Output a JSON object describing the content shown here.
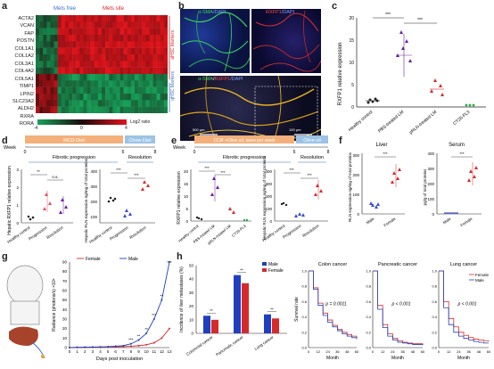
{
  "letters": {
    "a": "a",
    "b": "b",
    "c": "c",
    "d": "d",
    "e": "e",
    "f": "f",
    "g": "g",
    "h": "h"
  },
  "panel_a": {
    "groups": [
      "Mets free",
      "Mets site"
    ],
    "genes": [
      "ACTA2",
      "VCAN",
      "FAP",
      "POSTN",
      "COL1A1",
      "COL1A2",
      "COL3A1",
      "COL4A2",
      "COL5A1",
      "TIMP1",
      "LPIN2",
      "SLC23A2",
      "ALDH2",
      "RXRA",
      "RORA"
    ],
    "labels": [
      "aHSC Markers",
      "qHSC Markers"
    ],
    "scale_ticks": [
      "-4",
      "0",
      "4"
    ],
    "scale_title": "Log2 ratio",
    "colors": {
      "red": "#e4141b",
      "green": "#16a35a",
      "black": "#1a0a0a"
    }
  },
  "panel_b": {
    "top_left": {
      "part1": "α-SMA",
      "part2": "/DAPI"
    },
    "top_right": {
      "part1": "RXFP1",
      "part2": "/DAPI"
    },
    "bottom": {
      "part1": "α-SMA",
      "part2": "/",
      "part3": "RXFP1",
      "part4": "/DAPI"
    },
    "scalebars": [
      "500 μm",
      "100 μm"
    ]
  },
  "panel_c": {
    "ylabel": "RXFP1 relative expression",
    "yticks": [
      "0",
      "5",
      "10",
      "15",
      "20"
    ],
    "categories": [
      "Healthy control",
      "PBS-treated LM",
      "pRLN-treated LM",
      "CT26-FL3"
    ],
    "sig": [
      "***",
      "***"
    ]
  },
  "panel_d": {
    "diet_bar": "MCD Diet",
    "chow_bar": "Chow Diet",
    "week": "Week",
    "week_ticks": [
      "0",
      "6",
      "8"
    ],
    "phases": [
      "Fibrotic progression",
      "Resolution"
    ],
    "plot1": {
      "ylabel": "Hepatic RXFP1 relative expression",
      "yticks": [
        "0",
        "1",
        "2",
        "3"
      ],
      "categories": [
        "Healthy control",
        "Progression",
        "Resolution"
      ],
      "sig": [
        "**",
        "n.s.",
        "**"
      ]
    },
    "plot2": {
      "ylabel": "Hepatic RLN expression ng/mg of total proteins",
      "yticks": [
        "100",
        "200",
        "300",
        "400"
      ],
      "categories": [
        "Healthy control",
        "Progression",
        "Resolution"
      ],
      "sig": [
        "***",
        "***",
        "***"
      ]
    }
  },
  "panel_e": {
    "diet_bar": "CCl4 +Olive oil, twice per week",
    "olive_bar": "Olive oil",
    "week": "Week",
    "week_ticks": [
      "0",
      "6",
      "8"
    ],
    "phases": [
      "Fibrotic progression",
      "Resolution"
    ],
    "plot1": {
      "ylabel": "RXFP1 relative expression",
      "yticks": [
        "0",
        "5",
        "10",
        "15",
        "20"
      ],
      "categories": [
        "Healthy control",
        "PBS-treated LM",
        "pRLN-treated LM",
        "CT26-FL3"
      ],
      "sig": [
        "***",
        "***"
      ]
    },
    "plot2": {
      "ylabel": "Hepatic RLN expression ng/mg of total proteins",
      "yticks": [
        "0",
        "100",
        "200",
        "300",
        "400"
      ],
      "categories": [
        "Healthy control",
        "Progression",
        "Resolution"
      ],
      "sig": [
        "***",
        "***",
        "***"
      ]
    }
  },
  "panel_f": {
    "liver": {
      "title": "Liver",
      "ylabel": "RLN expression ng/mg of total proteins",
      "yticks": [
        "0",
        "100",
        "200",
        "300"
      ],
      "categories": [
        "Male",
        "Female"
      ],
      "sig": "***"
    },
    "serum": {
      "title": "Serum",
      "ylabel": "pg/g of total proteins",
      "yticks": [
        "0",
        "100",
        "200",
        "300",
        "400"
      ],
      "categories": [
        "Male",
        "Female"
      ],
      "sig": "***"
    }
  },
  "panel_g": {
    "ylabel": "Radiance (photons/s) ×10⁶",
    "xlabel": "Days post inoculation",
    "legend": [
      "Female",
      "Male"
    ],
    "yticks": [
      "0",
      "10",
      "20",
      "30",
      "40",
      "50",
      "60",
      "70",
      "80",
      "90"
    ],
    "xticks": [
      "0",
      "1",
      "2",
      "3",
      "4",
      "5",
      "6",
      "7",
      "8",
      "9",
      "10",
      "11",
      "12",
      "13"
    ],
    "sig": [
      "***",
      "**",
      "**",
      "***",
      "**",
      "***"
    ]
  },
  "panel_h": {
    "bar": {
      "ylabel": "Incidence of liver metastases (%)",
      "yticks": [
        "0",
        "10",
        "20",
        "30",
        "40",
        "50"
      ],
      "categories": [
        "Colorectal cancer",
        "Pancreatic cancer",
        "Lung cancer"
      ],
      "legend": [
        "Male",
        "Female"
      ],
      "sig": [
        "**",
        "**",
        "**"
      ]
    },
    "km": [
      {
        "title": "Colon cancer",
        "p": "p = 0.0011",
        "legend": []
      },
      {
        "title": "Pancreatic cancer",
        "p": "p < 0.001",
        "legend": []
      },
      {
        "title": "Lung cancer",
        "p": "p < 0.001",
        "legend": [
          "Female",
          "Male"
        ]
      }
    ],
    "km_ylabel": "Survival rate",
    "km_xlabel": "Month",
    "km_yticks": [
      "0.0",
      "0.2",
      "0.4",
      "0.6",
      "0.8",
      "1.0"
    ],
    "km_xticks": [
      "0",
      "12",
      "24",
      "36",
      "48",
      "60"
    ]
  },
  "colors": {
    "male": "#1f3fbf",
    "female": "#d62a2a",
    "pink": "#e0506a",
    "green": "#2aa84a",
    "purple": "#6a1fa0",
    "orange_bar": "#f4b07a",
    "blue_bar": "#9cc3e6"
  },
  "chart_data": [
    {
      "type": "line",
      "title": "",
      "xlabel": "Days post inoculation",
      "ylabel": "Radiance (photons/s) ×10⁶",
      "x": [
        0,
        1,
        2,
        3,
        4,
        5,
        6,
        7,
        8,
        9,
        10,
        11,
        12,
        13
      ],
      "series": [
        {
          "name": "Female",
          "values": [
            0,
            0.2,
            0.3,
            0.4,
            0.5,
            0.6,
            0.8,
            1,
            1.5,
            2,
            3,
            5,
            10,
            20
          ]
        },
        {
          "name": "Male",
          "values": [
            0,
            0.3,
            0.5,
            0.6,
            0.8,
            1,
            1.5,
            2,
            4,
            8,
            15,
            30,
            50,
            90
          ]
        }
      ],
      "ylim": [
        0,
        90
      ],
      "legend": "top-left"
    },
    {
      "type": "bar",
      "title": "",
      "ylabel": "Incidence of liver metastases (%)",
      "categories": [
        "Colorectal cancer",
        "Pancreatic cancer",
        "Lung cancer"
      ],
      "series": [
        {
          "name": "Male",
          "values": [
            13,
            43,
            14
          ]
        },
        {
          "name": "Female",
          "values": [
            10,
            37,
            11
          ]
        }
      ],
      "ylim": [
        0,
        50
      ],
      "legend": "top-right"
    },
    {
      "type": "line",
      "title": "Colon cancer",
      "xlabel": "Month",
      "ylabel": "Survival rate",
      "x": [
        0,
        6,
        12,
        18,
        24,
        30,
        36,
        42,
        48,
        54,
        60
      ],
      "series": [
        {
          "name": "Female",
          "values": [
            1.0,
            0.78,
            0.58,
            0.45,
            0.36,
            0.29,
            0.24,
            0.2,
            0.17,
            0.15,
            0.13
          ]
        },
        {
          "name": "Male",
          "values": [
            1.0,
            0.76,
            0.55,
            0.42,
            0.33,
            0.27,
            0.22,
            0.18,
            0.15,
            0.13,
            0.11
          ]
        }
      ],
      "ylim": [
        0,
        1
      ]
    },
    {
      "type": "line",
      "title": "Pancreatic cancer",
      "xlabel": "Month",
      "ylabel": "Survival rate",
      "x": [
        0,
        6,
        12,
        18,
        24,
        30,
        36,
        42,
        48,
        54,
        60
      ],
      "series": [
        {
          "name": "Female",
          "values": [
            1.0,
            0.55,
            0.3,
            0.18,
            0.12,
            0.09,
            0.07,
            0.06,
            0.05,
            0.05,
            0.04
          ]
        },
        {
          "name": "Male",
          "values": [
            1.0,
            0.5,
            0.26,
            0.15,
            0.1,
            0.07,
            0.06,
            0.05,
            0.04,
            0.04,
            0.03
          ]
        }
      ],
      "ylim": [
        0,
        1
      ]
    },
    {
      "type": "line",
      "title": "Lung cancer",
      "xlabel": "Month",
      "ylabel": "Survival rate",
      "x": [
        0,
        6,
        12,
        18,
        24,
        30,
        36,
        42,
        48,
        54,
        60
      ],
      "series": [
        {
          "name": "Female",
          "values": [
            1.0,
            0.6,
            0.38,
            0.27,
            0.2,
            0.16,
            0.13,
            0.11,
            0.1,
            0.09,
            0.08
          ]
        },
        {
          "name": "Male",
          "values": [
            1.0,
            0.52,
            0.3,
            0.2,
            0.15,
            0.12,
            0.1,
            0.08,
            0.07,
            0.06,
            0.06
          ]
        }
      ],
      "ylim": [
        0,
        1
      ],
      "legend": "top-right"
    }
  ]
}
